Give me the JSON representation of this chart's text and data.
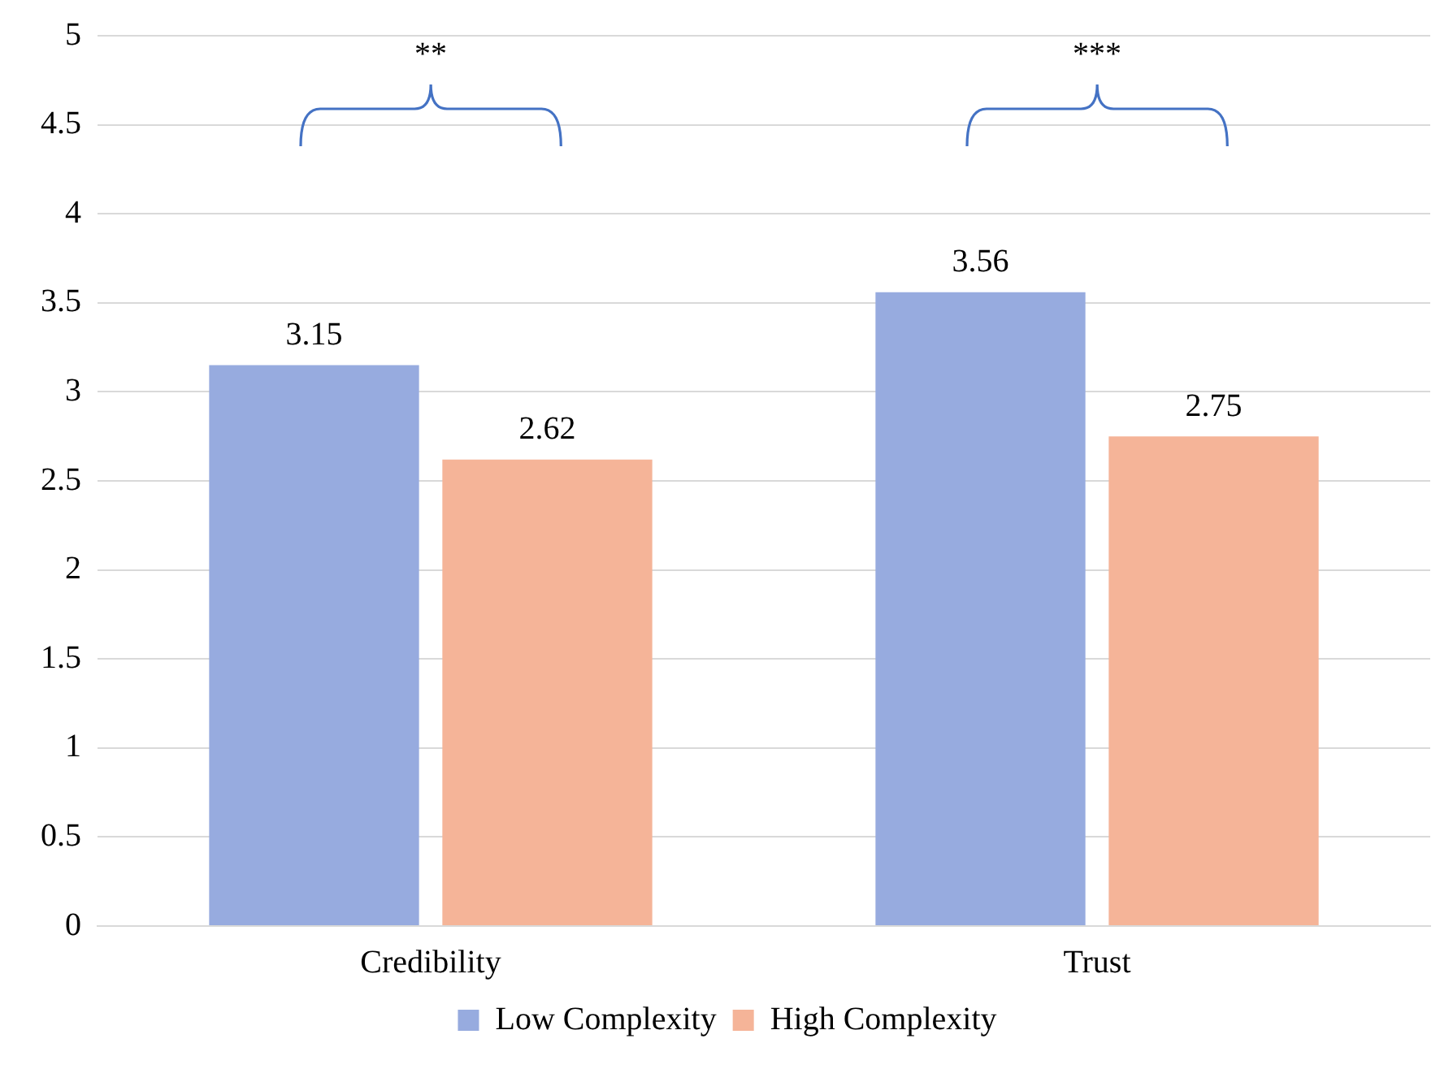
{
  "chart_data": {
    "type": "bar",
    "categories": [
      "Credibility",
      "Trust"
    ],
    "series": [
      {
        "name": "Low Complexity",
        "color": "#97abdf",
        "values": [
          3.15,
          3.56
        ]
      },
      {
        "name": "High Complexity",
        "color": "#f5b498",
        "values": [
          2.62,
          2.75
        ]
      }
    ],
    "ylim": [
      0,
      5
    ],
    "yticks": [
      0,
      0.5,
      1,
      1.5,
      2,
      2.5,
      3,
      3.5,
      4,
      4.5,
      5
    ],
    "grid": "y",
    "legend": "bottom",
    "data_labels": true,
    "annotations": [
      "**",
      "***"
    ]
  }
}
